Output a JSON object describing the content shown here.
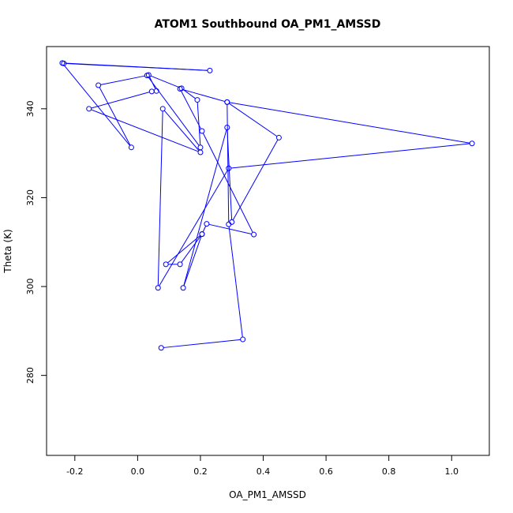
{
  "chart_data": {
    "type": "line",
    "title": "ATOM1 Southbound OA_PM1_AMSSD",
    "xlabel": "OA_PM1_AMSSD",
    "ylabel": "Theta (K)",
    "xlim": [
      -0.29,
      1.12
    ],
    "ylim": [
      262,
      354
    ],
    "x_ticks": [
      -0.2,
      0.0,
      0.2,
      0.4,
      0.6,
      0.8,
      1.0
    ],
    "x_tick_labels": [
      "-0.2",
      "0.0",
      "0.2",
      "0.4",
      "0.6",
      "0.8",
      "1.0"
    ],
    "y_ticks": [
      280,
      300,
      320,
      340
    ],
    "y_tick_labels": [
      "280",
      "300",
      "320",
      "340"
    ],
    "grid": false,
    "series": [
      {
        "color": "#0000ff",
        "marker": "open-circle",
        "x": [
          0.075,
          0.335,
          0.29,
          0.285,
          0.45,
          0.3,
          0.285,
          0.145,
          0.205,
          0.09,
          0.135,
          0.205,
          0.22,
          0.37,
          0.205,
          0.135,
          0.285,
          1.065,
          0.29,
          0.065,
          0.08,
          0.2,
          -0.155,
          0.045,
          0.06,
          0.035,
          0.14,
          0.19,
          0.2,
          0.03,
          -0.125,
          -0.02,
          -0.24,
          0.23,
          -0.235
        ],
        "y": [
          286.2,
          288.1,
          314,
          341.5,
          333.5,
          314.5,
          335.8,
          299.7,
          311.8,
          305.0,
          305.0,
          311.8,
          314.1,
          311.7,
          335.0,
          344.5,
          341.5,
          332.2,
          326.6,
          299.7,
          340.0,
          330.2,
          340.0,
          343.9,
          344.0,
          347.6,
          344.6,
          342.0,
          331.3,
          347.5,
          345.3,
          331.3,
          350.3,
          348.6,
          350.2
        ]
      }
    ]
  }
}
